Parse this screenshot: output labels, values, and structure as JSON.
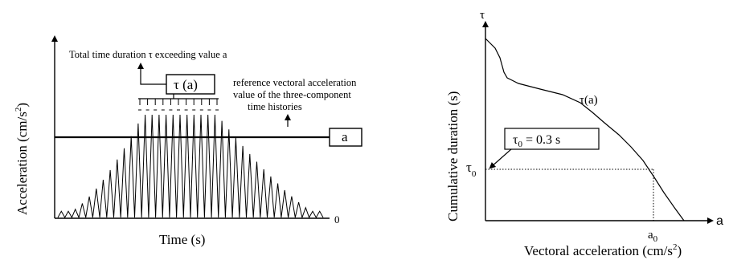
{
  "left_panel": {
    "ylabel": "Acceleration (cm/s",
    "ylabel_sup": "2",
    "ylabel_close": ")",
    "xlabel": "Time (s)",
    "origin_label": "0",
    "annotation_top": "Total time duration τ exceeding value a",
    "tau_box_label": "τ (a)",
    "reference_text": [
      "reference vectoral acceleration",
      "value of the three-component",
      "time histories"
    ],
    "threshold_box_label": "a"
  },
  "right_panel": {
    "tau_axis_label": "τ",
    "a_axis_label": "a",
    "ylabel": "Cumulative duration (s)",
    "xlabel": "Vectoral acceleration (cm/s",
    "xlabel_sup": "2",
    "xlabel_close": ")",
    "curve_label": "τ(a)",
    "tau0_box_text": "τ",
    "tau0_box_sub": "0",
    "tau0_box_value": " = 0.3 s",
    "tau0_label": "τ",
    "tau0_label_sub": "0",
    "a0_label": "a",
    "a0_label_sub": "0"
  }
}
